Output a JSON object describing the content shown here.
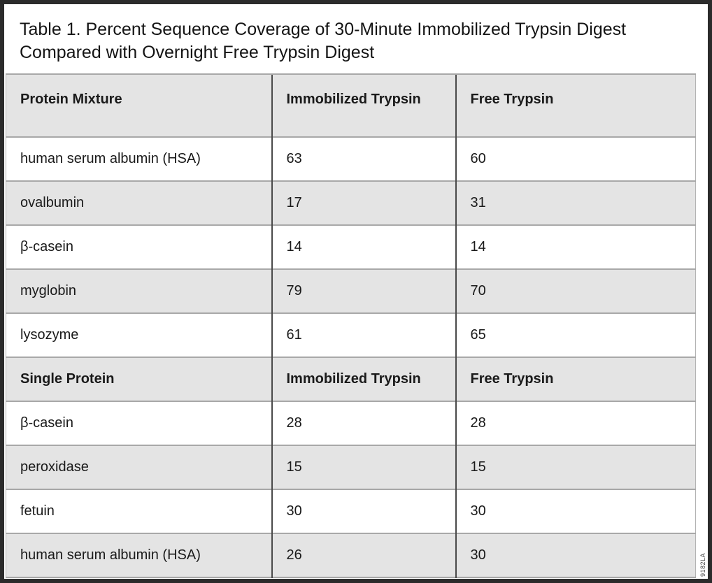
{
  "title": "Table 1. Percent Sequence Coverage of 30-Minute Immobilized Trypsin Digest Compared with Overnight Free Trypsin Digest",
  "watermark": "9182LA",
  "colors": {
    "shaded_row": "#e4e4e4",
    "plain_row": "#ffffff",
    "vertical_border": "#4a4a4a",
    "horizontal_border": "#a8a8a8",
    "frame": "#2b2b2b"
  },
  "table": {
    "sections": [
      {
        "header": [
          "Protein Mixture",
          "Immobilized Trypsin",
          "Free Trypsin"
        ],
        "rows": [
          [
            "human serum albumin (HSA)",
            "63",
            "60"
          ],
          [
            "ovalbumin",
            "17",
            "31"
          ],
          [
            "β-casein",
            "14",
            "14"
          ],
          [
            "myglobin",
            "79",
            "70"
          ],
          [
            "lysozyme",
            "61",
            "65"
          ]
        ]
      },
      {
        "header": [
          "Single Protein",
          "Immobilized Trypsin",
          "Free Trypsin"
        ],
        "rows": [
          [
            "β-casein",
            "28",
            "28"
          ],
          [
            "peroxidase",
            "15",
            "15"
          ],
          [
            "fetuin",
            "30",
            "30"
          ],
          [
            "human serum albumin (HSA)",
            "26",
            "30"
          ]
        ]
      }
    ]
  }
}
